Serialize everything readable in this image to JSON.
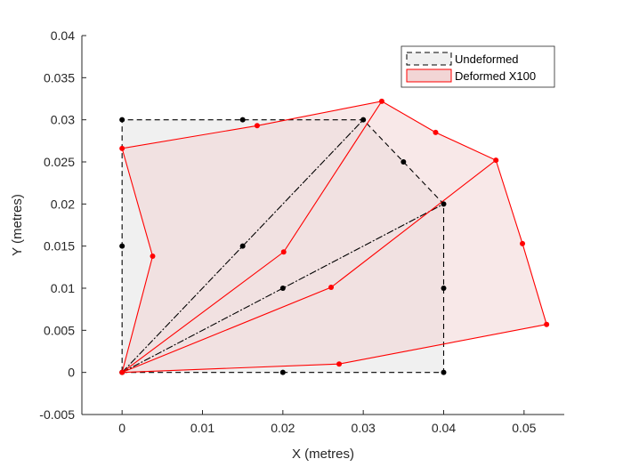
{
  "chart_data": {
    "type": "line",
    "title": "",
    "xlabel": "X (metres)",
    "ylabel": "Y (metres)",
    "xlim": [
      -0.005,
      0.055
    ],
    "ylim": [
      -0.005,
      0.04
    ],
    "x_ticks": [
      0,
      0.01,
      0.02,
      0.03,
      0.04,
      0.05
    ],
    "x_tick_labels": [
      "0",
      "0.01",
      "0.02",
      "0.03",
      "0.04",
      "0.05"
    ],
    "y_ticks": [
      -0.005,
      0,
      0.005,
      0.01,
      0.015,
      0.02,
      0.025,
      0.03,
      0.035,
      0.04
    ],
    "y_tick_labels": [
      "-0.005",
      "0",
      "0.005",
      "0.01",
      "0.015",
      "0.02",
      "0.025",
      "0.03",
      "0.035",
      "0.04"
    ],
    "grid": false,
    "legend_position": "top-right",
    "series": [
      {
        "name": "Undeformed",
        "color": "#000000",
        "fill": "#f0f0f0",
        "line_style": "dashed",
        "outline": [
          [
            0,
            0
          ],
          [
            0.02,
            0
          ],
          [
            0.04,
            0
          ],
          [
            0.04,
            0.01
          ],
          [
            0.04,
            0.02
          ],
          [
            0.035,
            0.025
          ],
          [
            0.03,
            0.03
          ],
          [
            0.015,
            0.03
          ],
          [
            0,
            0.03
          ],
          [
            0,
            0.015
          ],
          [
            0,
            0
          ]
        ],
        "internal_lines": [
          [
            [
              0,
              0
            ],
            [
              0.015,
              0.015
            ],
            [
              0.03,
              0.03
            ]
          ],
          [
            [
              0,
              0
            ],
            [
              0.02,
              0.01
            ],
            [
              0.04,
              0.02
            ]
          ]
        ],
        "nodes": [
          [
            0,
            0
          ],
          [
            0.02,
            0
          ],
          [
            0.04,
            0
          ],
          [
            0.04,
            0.01
          ],
          [
            0.04,
            0.02
          ],
          [
            0.035,
            0.025
          ],
          [
            0.03,
            0.03
          ],
          [
            0.015,
            0.03
          ],
          [
            0,
            0.03
          ],
          [
            0,
            0.015
          ],
          [
            0.015,
            0.015
          ],
          [
            0.02,
            0.01
          ]
        ]
      },
      {
        "name": "Deformed X100",
        "color": "#ff0000",
        "fill": "#f2d5d5",
        "line_style": "solid",
        "outline": [
          [
            0,
            0
          ],
          [
            0.027,
            0.001
          ],
          [
            0.0528,
            0.0057
          ],
          [
            0.0498,
            0.0153
          ],
          [
            0.0465,
            0.0252
          ],
          [
            0.039,
            0.0285
          ],
          [
            0.0323,
            0.0322
          ],
          [
            0.0168,
            0.0293
          ],
          [
            0,
            0.0266
          ],
          [
            0.0038,
            0.0138
          ],
          [
            0,
            0
          ]
        ],
        "internal_lines": [
          [
            [
              0,
              0
            ],
            [
              0.0201,
              0.0143
            ],
            [
              0.0323,
              0.0322
            ]
          ],
          [
            [
              0,
              0
            ],
            [
              0.026,
              0.0101
            ],
            [
              0.0465,
              0.0252
            ]
          ]
        ],
        "nodes": [
          [
            0,
            0
          ],
          [
            0.027,
            0.001
          ],
          [
            0.0528,
            0.0057
          ],
          [
            0.0498,
            0.0153
          ],
          [
            0.0465,
            0.0252
          ],
          [
            0.039,
            0.0285
          ],
          [
            0.0323,
            0.0322
          ],
          [
            0.0168,
            0.0293
          ],
          [
            0,
            0.0266
          ],
          [
            0.0038,
            0.0138
          ],
          [
            0.0201,
            0.0143
          ],
          [
            0.026,
            0.0101
          ]
        ]
      }
    ]
  }
}
